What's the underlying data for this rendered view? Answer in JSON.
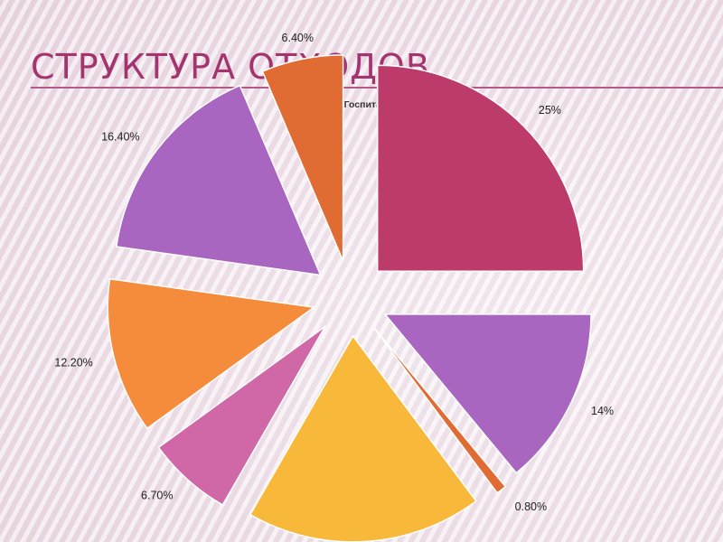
{
  "slide": {
    "title": "СТРУКТУРА ОТХОДОВ"
  },
  "chart_data": {
    "type": "pie",
    "title": "Отходы в «Госпитале для ветеранов войн»",
    "exploded": true,
    "slices": [
      {
        "label": "25%",
        "value": 25.0,
        "color": "#bc3b6a"
      },
      {
        "label": "14%",
        "value": 14.0,
        "color": "#a866c0"
      },
      {
        "label": "0.80%",
        "value": 0.8,
        "color": "#e06b33"
      },
      {
        "label": "",
        "value": 18.5,
        "color": "#f8b83a"
      },
      {
        "label": "6.70%",
        "value": 6.7,
        "color": "#d068a8"
      },
      {
        "label": "12.20%",
        "value": 12.2,
        "color": "#f58c3c"
      },
      {
        "label": "16.40%",
        "value": 16.4,
        "color": "#a866c0"
      },
      {
        "label": "6.40%",
        "value": 6.4,
        "color": "#e06b33"
      }
    ],
    "grid": false,
    "legend": "none"
  }
}
